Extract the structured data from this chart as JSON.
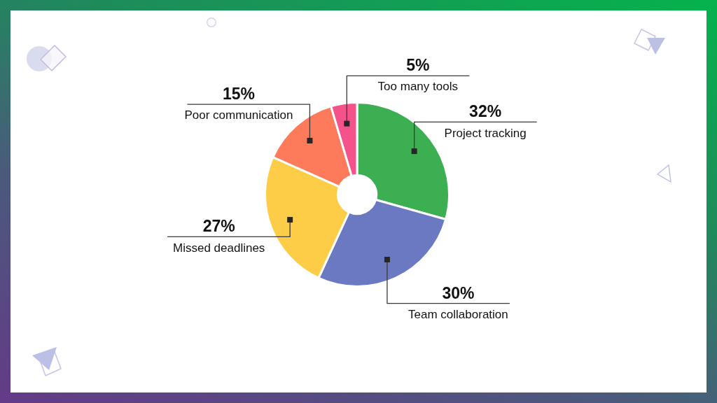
{
  "chart_data": {
    "type": "donut",
    "categories": [
      "Project tracking",
      "Team collaboration",
      "Missed deadlines",
      "Poor communication",
      "Too many tools"
    ],
    "values": [
      32,
      30,
      27,
      15,
      5
    ],
    "colors": [
      "#3daf53",
      "#6b79c3",
      "#fecd48",
      "#fd7b5b",
      "#f4528a"
    ],
    "value_labels": [
      "32%",
      "30%",
      "27%",
      "15%",
      "5%"
    ]
  }
}
